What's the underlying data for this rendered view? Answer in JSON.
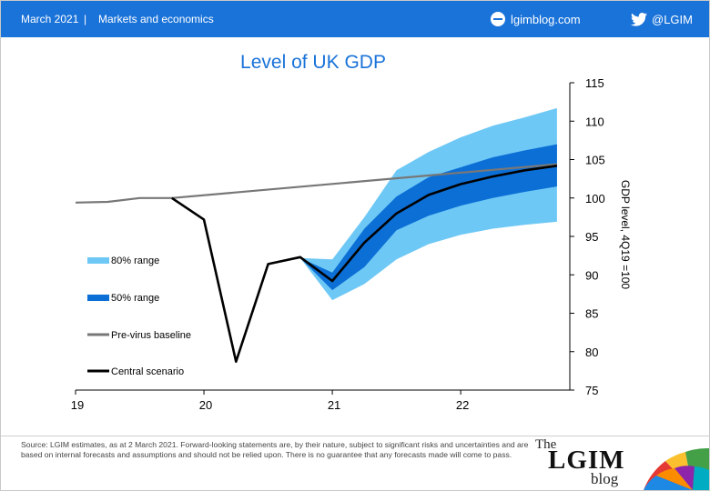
{
  "header": {
    "date": "March 2021",
    "separator": "|",
    "section": "Markets and economics",
    "site": "lgimblog.com",
    "twitter_handle": "@LGIM"
  },
  "footer": {
    "disclaimer": "Source: LGIM estimates, as at 2 March 2021. Forward-looking statements are, by their nature, subject to significant risks and uncertainties and are based on internal forecasts and assumptions and should not be relied upon. There is no guarantee that any forecasts made will come to pass.",
    "logo_the": "The",
    "logo_main": "LGIM",
    "logo_blog": "blog"
  },
  "colors": {
    "header_bg": "#1a73d9",
    "title": "#1a73d9",
    "range80": "#6ec8f5",
    "range50": "#0c6fd6",
    "baseline": "#777777",
    "central": "#000000"
  },
  "chart_data": {
    "type": "line",
    "title": "Level of UK GDP",
    "ylabel": "GDP level, 4Q19 =100",
    "ylim": [
      75,
      115
    ],
    "yticks": [
      75,
      80,
      85,
      90,
      95,
      100,
      105,
      110,
      115
    ],
    "xlim": [
      2019.0,
      2022.85
    ],
    "xticks": [
      {
        "value": 2019.0,
        "label": "19"
      },
      {
        "value": 2020.0,
        "label": "20"
      },
      {
        "value": 2021.0,
        "label": "21"
      },
      {
        "value": 2022.0,
        "label": "22"
      }
    ],
    "legend_position": "left",
    "series": [
      {
        "name": "80% range",
        "kind": "band",
        "x": [
          2020.75,
          2021.0,
          2021.25,
          2021.5,
          2021.75,
          2022.0,
          2022.25,
          2022.5,
          2022.75
        ],
        "lower": [
          92.2,
          86.7,
          88.8,
          92.0,
          94.0,
          95.2,
          96.0,
          96.5,
          96.9
        ],
        "upper": [
          92.2,
          92.0,
          97.5,
          103.6,
          106.0,
          107.9,
          109.4,
          110.5,
          111.7
        ]
      },
      {
        "name": "50% range",
        "kind": "band",
        "x": [
          2020.75,
          2021.0,
          2021.25,
          2021.5,
          2021.75,
          2022.0,
          2022.25,
          2022.5,
          2022.75
        ],
        "lower": [
          92.2,
          88.0,
          91.0,
          95.8,
          97.7,
          99.0,
          100.0,
          100.8,
          101.5
        ],
        "upper": [
          92.2,
          90.3,
          96.0,
          100.2,
          102.7,
          104.0,
          105.3,
          106.2,
          107.0
        ]
      },
      {
        "name": "Pre-virus baseline",
        "kind": "line",
        "x": [
          2019.0,
          2019.25,
          2019.5,
          2019.75,
          2022.75
        ],
        "y": [
          99.4,
          99.5,
          100.0,
          100.0,
          104.4
        ]
      },
      {
        "name": "Central scenario",
        "kind": "line",
        "x": [
          2019.75,
          2020.0,
          2020.25,
          2020.5,
          2020.75,
          2021.0,
          2021.25,
          2021.5,
          2021.75,
          2022.0,
          2022.25,
          2022.5,
          2022.75
        ],
        "y": [
          100.0,
          97.2,
          78.7,
          91.4,
          92.3,
          89.2,
          94.2,
          98.0,
          100.4,
          101.8,
          102.8,
          103.6,
          104.2
        ]
      }
    ]
  }
}
